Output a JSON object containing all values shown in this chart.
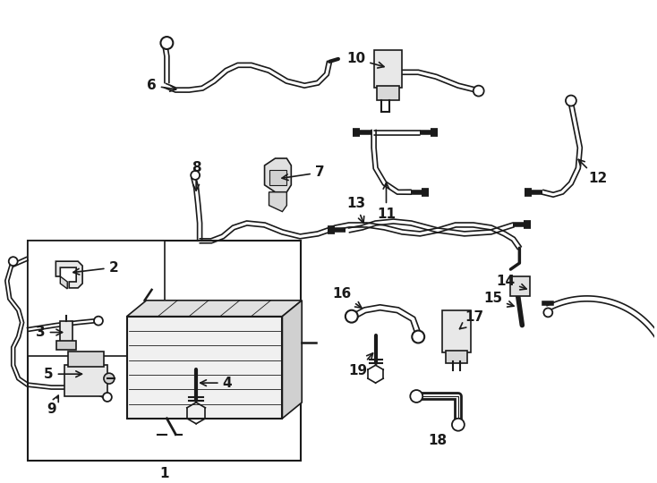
{
  "background_color": "#ffffff",
  "line_color": "#1a1a1a",
  "lw": 1.2,
  "fs": 11,
  "fig_w": 7.34,
  "fig_h": 5.4,
  "dpi": 100
}
